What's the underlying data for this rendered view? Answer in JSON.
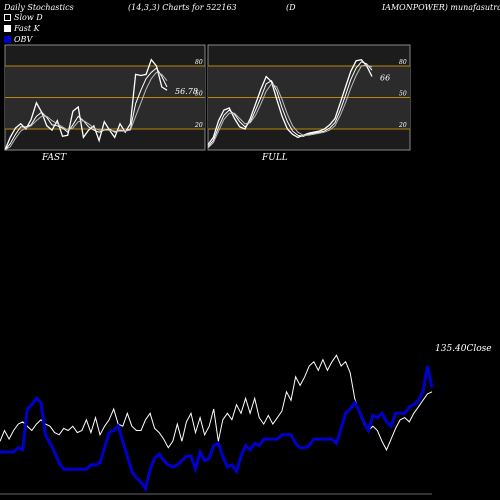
{
  "header": {
    "title": "Daily Stochastics",
    "params": "(14,3,3) Charts for 522163",
    "symbol_open": "(D",
    "source": "IAMONPOWER) munafasutra.c"
  },
  "legend": [
    {
      "label": "Slow  D",
      "color": "#ffffff"
    },
    {
      "label": "Fast K",
      "color": "#ffffff"
    },
    {
      "label": "OBV",
      "color": "#0000cc"
    }
  ],
  "chart_data": [
    {
      "type": "line",
      "title": "FAST",
      "ylim": [
        0,
        100
      ],
      "levels": [
        80,
        50,
        20
      ],
      "yticks": [
        "80",
        "50",
        "20"
      ],
      "last_value_label": "56.78",
      "series": [
        {
          "values": [
            0,
            12,
            21,
            25,
            20,
            29,
            45,
            36,
            23,
            19,
            28,
            13,
            14,
            37,
            41,
            12,
            19,
            23,
            9,
            27,
            19,
            12,
            25,
            17,
            25,
            72,
            71,
            72,
            86,
            80,
            60,
            57
          ]
        },
        {
          "values": [
            0,
            6,
            15,
            22,
            22,
            24,
            32,
            36,
            31,
            24,
            23,
            21,
            17,
            24,
            32,
            28,
            22,
            19,
            17,
            19,
            20,
            17,
            19,
            18,
            20,
            44,
            57,
            68,
            74,
            78,
            70,
            60
          ]
        },
        {
          "values": [
            0,
            3,
            11,
            18,
            21,
            23,
            28,
            32,
            32,
            28,
            25,
            22,
            19,
            21,
            27,
            28,
            25,
            21,
            19,
            19,
            19,
            18,
            18,
            18,
            19,
            32,
            45,
            58,
            68,
            74,
            72,
            66
          ]
        }
      ]
    },
    {
      "type": "line",
      "title": "FULL",
      "ylim": [
        0,
        100
      ],
      "levels": [
        80,
        50,
        20
      ],
      "yticks": [
        "80",
        "50",
        "20"
      ],
      "last_value_label": "66",
      "series": [
        {
          "values": [
            5,
            12,
            28,
            38,
            40,
            30,
            22,
            20,
            30,
            44,
            58,
            70,
            65,
            48,
            32,
            20,
            15,
            12,
            14,
            16,
            17,
            18,
            20,
            24,
            30,
            45,
            60,
            75,
            85,
            86,
            80,
            70
          ]
        },
        {
          "values": [
            3,
            9,
            22,
            33,
            38,
            34,
            27,
            22,
            27,
            38,
            50,
            63,
            66,
            56,
            40,
            27,
            18,
            14,
            13,
            15,
            16,
            17,
            18,
            21,
            26,
            38,
            52,
            67,
            78,
            84,
            82,
            76
          ]
        },
        {
          "values": [
            2,
            7,
            18,
            29,
            35,
            35,
            30,
            25,
            26,
            33,
            44,
            56,
            63,
            60,
            48,
            34,
            23,
            17,
            14,
            14,
            15,
            16,
            17,
            19,
            23,
            33,
            45,
            59,
            71,
            80,
            81,
            79
          ]
        }
      ]
    },
    {
      "type": "line",
      "title": "",
      "series": [
        {
          "name": "Close",
          "color": "#ffffff",
          "values": [
            25,
            30,
            26,
            30,
            33,
            34,
            32,
            30,
            33,
            35,
            33,
            32,
            29,
            28,
            31,
            30,
            32,
            29,
            30,
            35,
            29,
            36,
            28,
            32,
            35,
            40,
            33,
            32,
            38,
            32,
            30,
            30,
            35,
            38,
            31,
            29,
            26,
            22,
            25,
            33,
            25,
            34,
            38,
            29,
            36,
            28,
            32,
            40,
            25,
            35,
            38,
            35,
            42,
            38,
            45,
            38,
            45,
            36,
            33,
            37,
            33,
            36,
            39,
            48,
            44,
            55,
            51,
            55,
            60,
            62,
            58,
            63,
            58,
            62,
            65,
            60,
            62,
            57,
            45,
            38,
            33,
            30,
            32,
            30,
            25,
            21,
            26,
            31,
            35,
            36,
            34,
            38,
            41,
            44,
            47,
            48
          ]
        },
        {
          "name": "OBV",
          "color": "#0000cc",
          "values": [
            20,
            20,
            20,
            20,
            22,
            21,
            40,
            42,
            45,
            43,
            28,
            24,
            20,
            15,
            12,
            12,
            12,
            12,
            12,
            12,
            14,
            14,
            15,
            22,
            29,
            30,
            32,
            25,
            18,
            11,
            8,
            6,
            3,
            12,
            17,
            19,
            16,
            14,
            13,
            14,
            16,
            18,
            18,
            12,
            20,
            16,
            17,
            23,
            24,
            18,
            13,
            14,
            11,
            18,
            23,
            21,
            24,
            23,
            26,
            26,
            26,
            26,
            28,
            28,
            28,
            24,
            22,
            22,
            23,
            26,
            26,
            26,
            26,
            26,
            24,
            31,
            38,
            40,
            43,
            39,
            34,
            30,
            37,
            36,
            38,
            34,
            32,
            38,
            38,
            38,
            41,
            42,
            44,
            48,
            60,
            50
          ]
        }
      ],
      "last_value_label": "135.40",
      "close_label": "Close"
    }
  ]
}
